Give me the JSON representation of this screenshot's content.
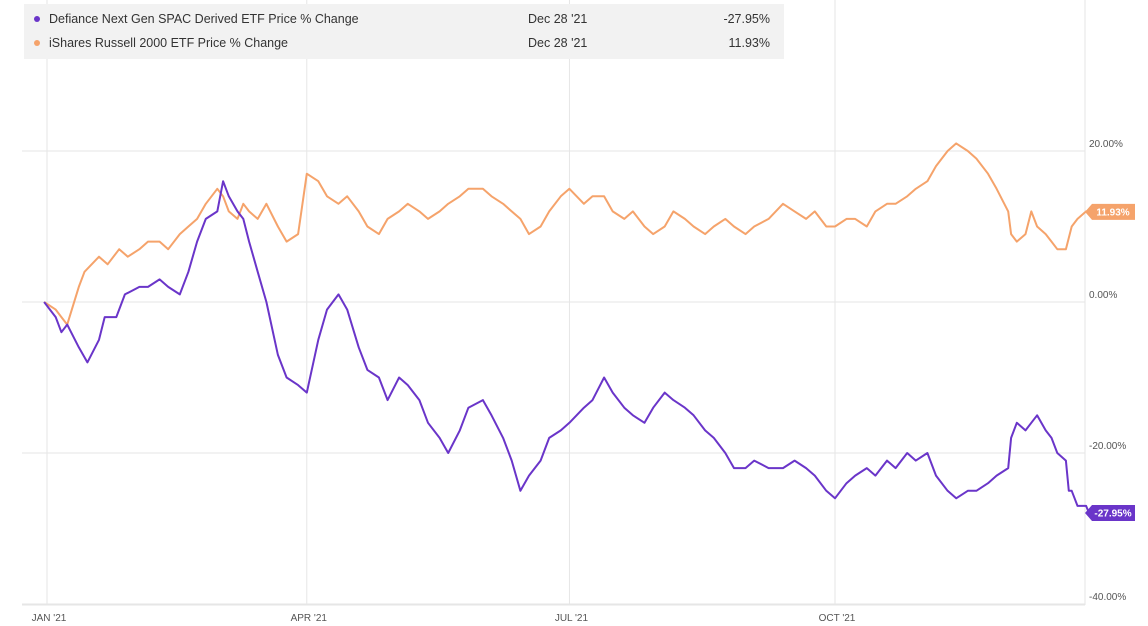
{
  "legend": [
    {
      "name": "Defiance Next Gen SPAC Derived ETF Price % Change",
      "date": "Dec 28 '21",
      "value": "-27.95%"
    },
    {
      "name": "iShares Russell 2000 ETF Price % Change",
      "date": "Dec 28 '21",
      "value": "11.93%"
    }
  ],
  "chart_data": {
    "type": "line",
    "y_ticks": [
      "20.00%",
      "0.00%",
      "-20.00%",
      "-40.00%"
    ],
    "y_tick_values": [
      20,
      0,
      -20,
      -40
    ],
    "x_ticks": [
      "JAN '21",
      "APR '21",
      "JUL '21",
      "OCT '21"
    ],
    "x_tick_dates": [
      "2021-01-01",
      "2021-04-01",
      "2021-07-01",
      "2021-10-01"
    ],
    "xlim": [
      "2020-12-31",
      "2021-12-31"
    ],
    "ylim": [
      -40,
      40
    ],
    "grid": true,
    "series": [
      {
        "name": "Defiance Next Gen SPAC Derived ETF Price % Change",
        "color": "#6a35c9",
        "end_label": "-27.95%",
        "points": [
          [
            "2020-12-31",
            0
          ],
          [
            "2021-01-04",
            -2
          ],
          [
            "2021-01-06",
            -4
          ],
          [
            "2021-01-08",
            -3
          ],
          [
            "2021-01-12",
            -6
          ],
          [
            "2021-01-15",
            -8
          ],
          [
            "2021-01-19",
            -5
          ],
          [
            "2021-01-21",
            -2
          ],
          [
            "2021-01-25",
            -2
          ],
          [
            "2021-01-28",
            1
          ],
          [
            "2021-02-02",
            2
          ],
          [
            "2021-02-05",
            2
          ],
          [
            "2021-02-09",
            3
          ],
          [
            "2021-02-12",
            2
          ],
          [
            "2021-02-16",
            1
          ],
          [
            "2021-02-19",
            4
          ],
          [
            "2021-02-22",
            8
          ],
          [
            "2021-02-25",
            11
          ],
          [
            "2021-03-01",
            12
          ],
          [
            "2021-03-03",
            16
          ],
          [
            "2021-03-05",
            14
          ],
          [
            "2021-03-08",
            12
          ],
          [
            "2021-03-10",
            11
          ],
          [
            "2021-03-12",
            8
          ],
          [
            "2021-03-15",
            4
          ],
          [
            "2021-03-18",
            0
          ],
          [
            "2021-03-22",
            -7
          ],
          [
            "2021-03-25",
            -10
          ],
          [
            "2021-03-29",
            -11
          ],
          [
            "2021-04-01",
            -12
          ],
          [
            "2021-04-05",
            -5
          ],
          [
            "2021-04-08",
            -1
          ],
          [
            "2021-04-12",
            1
          ],
          [
            "2021-04-15",
            -1
          ],
          [
            "2021-04-19",
            -6
          ],
          [
            "2021-04-22",
            -9
          ],
          [
            "2021-04-26",
            -10
          ],
          [
            "2021-04-29",
            -13
          ],
          [
            "2021-05-03",
            -10
          ],
          [
            "2021-05-06",
            -11
          ],
          [
            "2021-05-10",
            -13
          ],
          [
            "2021-05-13",
            -16
          ],
          [
            "2021-05-17",
            -18
          ],
          [
            "2021-05-20",
            -20
          ],
          [
            "2021-05-24",
            -17
          ],
          [
            "2021-05-27",
            -14
          ],
          [
            "2021-06-01",
            -13
          ],
          [
            "2021-06-04",
            -15
          ],
          [
            "2021-06-08",
            -18
          ],
          [
            "2021-06-11",
            -21
          ],
          [
            "2021-06-14",
            -25
          ],
          [
            "2021-06-17",
            -23
          ],
          [
            "2021-06-21",
            -21
          ],
          [
            "2021-06-24",
            -18
          ],
          [
            "2021-06-28",
            -17
          ],
          [
            "2021-07-01",
            -16
          ],
          [
            "2021-07-06",
            -14
          ],
          [
            "2021-07-09",
            -13
          ],
          [
            "2021-07-13",
            -10
          ],
          [
            "2021-07-16",
            -12
          ],
          [
            "2021-07-20",
            -14
          ],
          [
            "2021-07-23",
            -15
          ],
          [
            "2021-07-27",
            -16
          ],
          [
            "2021-07-30",
            -14
          ],
          [
            "2021-08-03",
            -12
          ],
          [
            "2021-08-06",
            -13
          ],
          [
            "2021-08-10",
            -14
          ],
          [
            "2021-08-13",
            -15
          ],
          [
            "2021-08-17",
            -17
          ],
          [
            "2021-08-20",
            -18
          ],
          [
            "2021-08-24",
            -20
          ],
          [
            "2021-08-27",
            -22
          ],
          [
            "2021-08-31",
            -22
          ],
          [
            "2021-09-03",
            -21
          ],
          [
            "2021-09-08",
            -22
          ],
          [
            "2021-09-13",
            -22
          ],
          [
            "2021-09-17",
            -21
          ],
          [
            "2021-09-21",
            -22
          ],
          [
            "2021-09-24",
            -23
          ],
          [
            "2021-09-28",
            -25
          ],
          [
            "2021-10-01",
            -26
          ],
          [
            "2021-10-05",
            -24
          ],
          [
            "2021-10-08",
            -23
          ],
          [
            "2021-10-12",
            -22
          ],
          [
            "2021-10-15",
            -23
          ],
          [
            "2021-10-19",
            -21
          ],
          [
            "2021-10-22",
            -22
          ],
          [
            "2021-10-26",
            -20
          ],
          [
            "2021-10-29",
            -21
          ],
          [
            "2021-11-02",
            -20
          ],
          [
            "2021-11-05",
            -23
          ],
          [
            "2021-11-09",
            -25
          ],
          [
            "2021-11-12",
            -26
          ],
          [
            "2021-11-16",
            -25
          ],
          [
            "2021-11-19",
            -25
          ],
          [
            "2021-11-23",
            -24
          ],
          [
            "2021-11-26",
            -23
          ],
          [
            "2021-11-30",
            -22
          ],
          [
            "2021-12-01",
            -18
          ],
          [
            "2021-12-03",
            -16
          ],
          [
            "2021-12-06",
            -17
          ],
          [
            "2021-12-08",
            -16
          ],
          [
            "2021-12-10",
            -15
          ],
          [
            "2021-12-13",
            -17
          ],
          [
            "2021-12-15",
            -18
          ],
          [
            "2021-12-17",
            -20
          ],
          [
            "2021-12-20",
            -21
          ],
          [
            "2021-12-21",
            -25
          ],
          [
            "2021-12-22",
            -25
          ],
          [
            "2021-12-23",
            -26
          ],
          [
            "2021-12-24",
            -27
          ],
          [
            "2021-12-27",
            -27
          ],
          [
            "2021-12-28",
            -27.95
          ]
        ]
      },
      {
        "name": "iShares Russell 2000 ETF Price % Change",
        "color": "#f5a36b",
        "end_label": "11.93%",
        "points": [
          [
            "2020-12-31",
            0
          ],
          [
            "2021-01-04",
            -1
          ],
          [
            "2021-01-06",
            -2
          ],
          [
            "2021-01-08",
            -3
          ],
          [
            "2021-01-12",
            2
          ],
          [
            "2021-01-14",
            4
          ],
          [
            "2021-01-19",
            6
          ],
          [
            "2021-01-22",
            5
          ],
          [
            "2021-01-26",
            7
          ],
          [
            "2021-01-29",
            6
          ],
          [
            "2021-02-02",
            7
          ],
          [
            "2021-02-05",
            8
          ],
          [
            "2021-02-09",
            8
          ],
          [
            "2021-02-12",
            7
          ],
          [
            "2021-02-16",
            9
          ],
          [
            "2021-02-19",
            10
          ],
          [
            "2021-02-22",
            11
          ],
          [
            "2021-02-25",
            13
          ],
          [
            "2021-03-01",
            15
          ],
          [
            "2021-03-03",
            14
          ],
          [
            "2021-03-05",
            12
          ],
          [
            "2021-03-08",
            11
          ],
          [
            "2021-03-10",
            13
          ],
          [
            "2021-03-12",
            12
          ],
          [
            "2021-03-15",
            11
          ],
          [
            "2021-03-18",
            13
          ],
          [
            "2021-03-22",
            10
          ],
          [
            "2021-03-25",
            8
          ],
          [
            "2021-03-29",
            9
          ],
          [
            "2021-04-01",
            17
          ],
          [
            "2021-04-05",
            16
          ],
          [
            "2021-04-08",
            14
          ],
          [
            "2021-04-12",
            13
          ],
          [
            "2021-04-15",
            14
          ],
          [
            "2021-04-19",
            12
          ],
          [
            "2021-04-22",
            10
          ],
          [
            "2021-04-26",
            9
          ],
          [
            "2021-04-29",
            11
          ],
          [
            "2021-05-03",
            12
          ],
          [
            "2021-05-06",
            13
          ],
          [
            "2021-05-10",
            12
          ],
          [
            "2021-05-13",
            11
          ],
          [
            "2021-05-17",
            12
          ],
          [
            "2021-05-20",
            13
          ],
          [
            "2021-05-24",
            14
          ],
          [
            "2021-05-27",
            15
          ],
          [
            "2021-06-01",
            15
          ],
          [
            "2021-06-04",
            14
          ],
          [
            "2021-06-08",
            13
          ],
          [
            "2021-06-11",
            12
          ],
          [
            "2021-06-14",
            11
          ],
          [
            "2021-06-17",
            9
          ],
          [
            "2021-06-21",
            10
          ],
          [
            "2021-06-24",
            12
          ],
          [
            "2021-06-28",
            14
          ],
          [
            "2021-07-01",
            15
          ],
          [
            "2021-07-06",
            13
          ],
          [
            "2021-07-09",
            14
          ],
          [
            "2021-07-13",
            14
          ],
          [
            "2021-07-16",
            12
          ],
          [
            "2021-07-20",
            11
          ],
          [
            "2021-07-23",
            12
          ],
          [
            "2021-07-27",
            10
          ],
          [
            "2021-07-30",
            9
          ],
          [
            "2021-08-03",
            10
          ],
          [
            "2021-08-06",
            12
          ],
          [
            "2021-08-10",
            11
          ],
          [
            "2021-08-13",
            10
          ],
          [
            "2021-08-17",
            9
          ],
          [
            "2021-08-20",
            10
          ],
          [
            "2021-08-24",
            11
          ],
          [
            "2021-08-27",
            10
          ],
          [
            "2021-08-31",
            9
          ],
          [
            "2021-09-03",
            10
          ],
          [
            "2021-09-08",
            11
          ],
          [
            "2021-09-13",
            13
          ],
          [
            "2021-09-17",
            12
          ],
          [
            "2021-09-21",
            11
          ],
          [
            "2021-09-24",
            12
          ],
          [
            "2021-09-28",
            10
          ],
          [
            "2021-10-01",
            10
          ],
          [
            "2021-10-05",
            11
          ],
          [
            "2021-10-08",
            11
          ],
          [
            "2021-10-12",
            10
          ],
          [
            "2021-10-15",
            12
          ],
          [
            "2021-10-19",
            13
          ],
          [
            "2021-10-22",
            13
          ],
          [
            "2021-10-26",
            14
          ],
          [
            "2021-10-29",
            15
          ],
          [
            "2021-11-02",
            16
          ],
          [
            "2021-11-05",
            18
          ],
          [
            "2021-11-09",
            20
          ],
          [
            "2021-11-12",
            21
          ],
          [
            "2021-11-16",
            20
          ],
          [
            "2021-11-19",
            19
          ],
          [
            "2021-11-23",
            17
          ],
          [
            "2021-11-26",
            15
          ],
          [
            "2021-11-30",
            12
          ],
          [
            "2021-12-01",
            9
          ],
          [
            "2021-12-03",
            8
          ],
          [
            "2021-12-06",
            9
          ],
          [
            "2021-12-08",
            12
          ],
          [
            "2021-12-10",
            10
          ],
          [
            "2021-12-13",
            9
          ],
          [
            "2021-12-15",
            8
          ],
          [
            "2021-12-17",
            7
          ],
          [
            "2021-12-20",
            7
          ],
          [
            "2021-12-22",
            10
          ],
          [
            "2021-12-24",
            11
          ],
          [
            "2021-12-27",
            12
          ],
          [
            "2021-12-28",
            11.93
          ]
        ]
      }
    ]
  }
}
